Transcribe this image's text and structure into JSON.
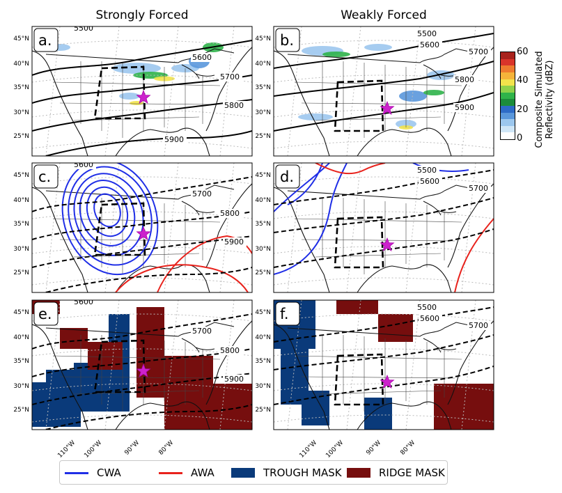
{
  "columns": [
    {
      "title": "Strongly Forced"
    },
    {
      "title": "Weakly Forced"
    }
  ],
  "panels": [
    {
      "label": "a.",
      "heights": [
        "5500",
        "5600",
        "5700",
        "5800",
        "5900"
      ]
    },
    {
      "label": "b.",
      "heights": [
        "5500",
        "5600",
        "5700",
        "5800",
        "5900"
      ]
    },
    {
      "label": "c.",
      "heights": [
        "5600",
        "5700",
        "5800",
        "5900"
      ]
    },
    {
      "label": "d.",
      "heights": [
        "5500",
        "5600",
        "5700"
      ]
    },
    {
      "label": "e.",
      "heights": [
        "5600",
        "5700",
        "5800",
        "5900"
      ]
    },
    {
      "label": "f.",
      "heights": [
        "5500",
        "5600",
        "5700"
      ]
    }
  ],
  "lat_labels": [
    "45°N",
    "40°N",
    "35°N",
    "30°N",
    "25°N"
  ],
  "lon_labels": [
    "110°W",
    "100°W",
    "90°W",
    "80°W"
  ],
  "colorbar": {
    "label_line1": "Composite Simulated",
    "label_line2": "Reflectivity (dBZ)",
    "ticks": [
      "60",
      "40",
      "20",
      "0"
    ],
    "range": [
      0,
      60
    ],
    "colors": [
      "#ffffff",
      "#cfe6f7",
      "#9cc7ee",
      "#5a97db",
      "#2d6bc7",
      "#1c8c3a",
      "#2fb34a",
      "#8fd24a",
      "#f2e34b",
      "#f5b43a",
      "#ee7b2f",
      "#d9342a",
      "#a8221c"
    ]
  },
  "legend": {
    "items": [
      {
        "label": "CWA",
        "color": "#1f2ee6",
        "kind": "line"
      },
      {
        "label": "AWA",
        "color": "#e8221c",
        "kind": "line"
      },
      {
        "label": "TROUGH MASK",
        "color": "#0a3a7a",
        "kind": "patch"
      },
      {
        "label": "RIDGE MASK",
        "color": "#760e0e",
        "kind": "patch"
      }
    ]
  },
  "marker": {
    "symbol": "star",
    "color": "#cc22cc"
  }
}
